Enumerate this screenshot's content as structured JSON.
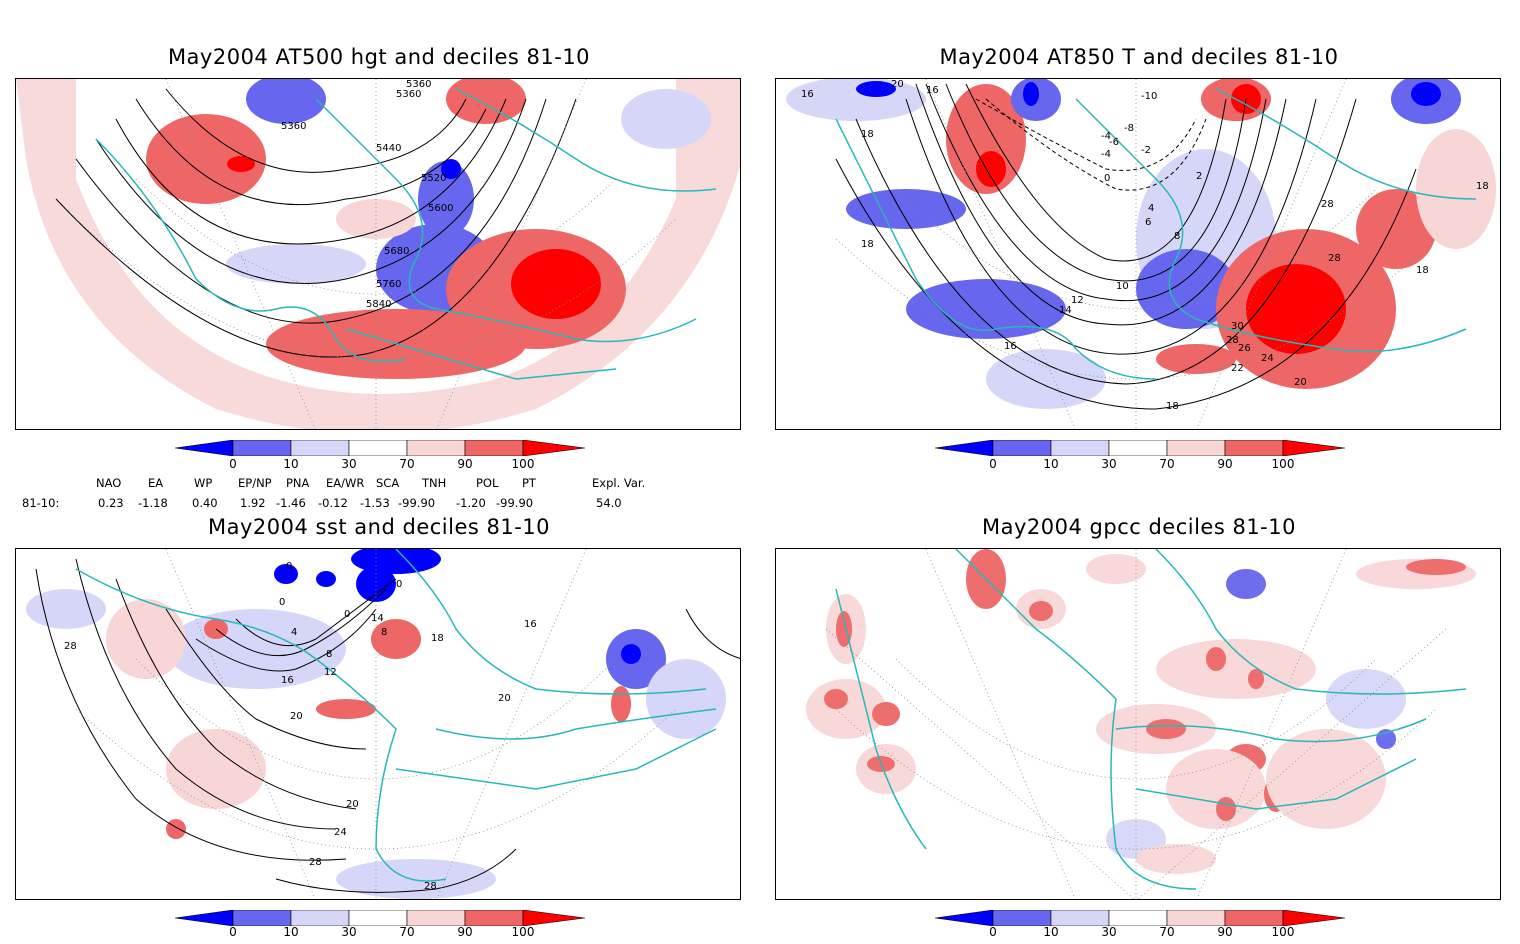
{
  "panels": [
    {
      "title": "May2004 AT500 hgt and deciles 81-10",
      "contour_labels": [
        "5360",
        "5360",
        "5360",
        "5440",
        "5520",
        "5600",
        "5680",
        "5760",
        "5840"
      ]
    },
    {
      "title": "May2004 AT850 T and deciles 81-10",
      "contour_labels": [
        "20",
        "16",
        "16",
        "18",
        "18",
        "-10",
        "-8",
        "-4",
        "-6",
        "-4",
        "-2",
        "0",
        "2",
        "4",
        "6",
        "8",
        "10",
        "12",
        "14",
        "16",
        "18",
        "18",
        "20",
        "22",
        "24",
        "26",
        "28",
        "28",
        "30",
        "18",
        "28"
      ]
    },
    {
      "title": "May2004 sst and deciles 81-10",
      "contour_labels": [
        "0",
        "0",
        "0",
        "0",
        "4",
        "8",
        "12",
        "16",
        "20",
        "20",
        "24",
        "28",
        "28",
        "28",
        "16",
        "20",
        "14",
        "8",
        "18"
      ]
    },
    {
      "title": "May2004 gpcc deciles 81-10",
      "contour_labels": []
    }
  ],
  "colorbar": {
    "labels": [
      "0",
      "10",
      "30",
      "70",
      "90",
      "100"
    ],
    "colors": [
      "#0000ff",
      "#6666ee",
      "#d6d6f8",
      "#ffffff",
      "#f8d6d6",
      "#ee6666",
      "#ff0000"
    ]
  },
  "indices": {
    "headers": [
      "NAO",
      "EA",
      "WP",
      "EP/NP",
      "PNA",
      "EA/WR",
      "SCA",
      "TNH",
      "POL",
      "PT",
      "Expl. Var."
    ],
    "row_label": "81-10:",
    "values": [
      "0.23",
      "-1.18",
      "0.40",
      "1.92",
      "-1.46",
      "-0.12",
      "-1.53",
      "-99.90",
      "-1.20",
      "-99.90",
      "54.0"
    ]
  },
  "colors": {
    "coast": "#2ab7b7",
    "grid": "#888888",
    "pos_light": "#f8d6d6",
    "pos_mid": "#ee6666",
    "pos_strong": "#ff0000",
    "neg_light": "#d6d6f8",
    "neg_mid": "#6666ee",
    "neg_strong": "#0000ff"
  }
}
